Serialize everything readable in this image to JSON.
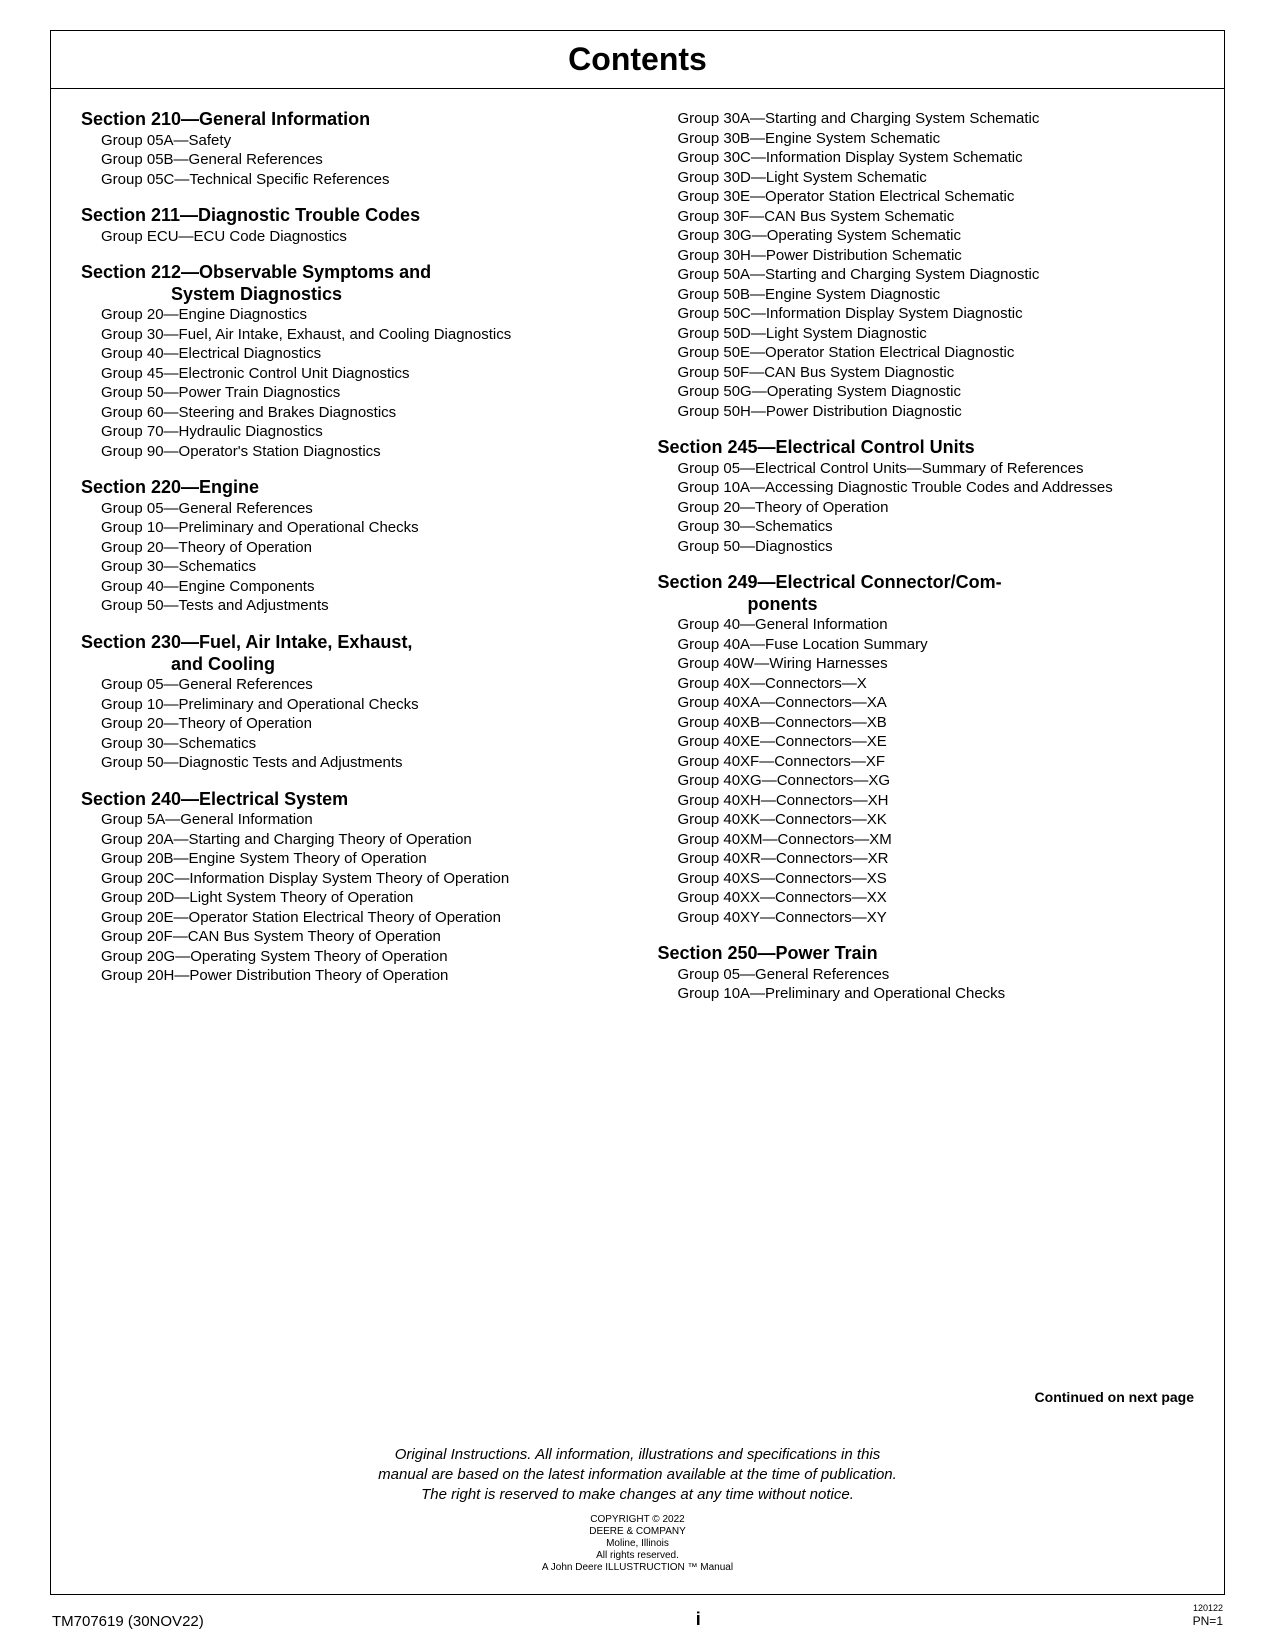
{
  "title": "Contents",
  "continued": "Continued on next page",
  "disclaimer": [
    "Original Instructions. All information, illustrations and specifications in this",
    "manual are based on the latest information available at the time of publication.",
    "The right is reserved to make changes at any time without notice."
  ],
  "copyright": [
    "COPYRIGHT © 2022",
    "DEERE & COMPANY",
    "Moline, Illinois",
    "All rights reserved.",
    "A John Deere ILLUSTRUCTION ™ Manual"
  ],
  "footer": {
    "left": "TM707619 (30NOV22)",
    "center": "i",
    "right_small": "120122",
    "right_pn": "PN=1"
  },
  "left_sections": [
    {
      "title": "Section 210—General Information",
      "groups": [
        "Group 05A—Safety",
        "Group 05B—General References",
        "Group 05C—Technical Specific References"
      ]
    },
    {
      "title": "Section 211—Diagnostic Trouble Codes",
      "groups": [
        "Group ECU—ECU Code Diagnostics"
      ]
    },
    {
      "title": "Section 212—Observable Symptoms and",
      "title_cont": "System Diagnostics",
      "groups": [
        "Group 20—Engine Diagnostics",
        "Group 30—Fuel, Air Intake, Exhaust, and Cooling Diagnostics",
        "Group 40—Electrical Diagnostics",
        "Group 45—Electronic Control Unit Diagnostics",
        "Group 50—Power Train Diagnostics",
        "Group 60—Steering and Brakes Diagnostics",
        "Group 70—Hydraulic Diagnostics",
        "Group 90—Operator's Station Diagnostics"
      ]
    },
    {
      "title": "Section 220—Engine",
      "groups": [
        "Group 05—General References",
        "Group 10—Preliminary and Operational Checks",
        "Group 20—Theory of Operation",
        "Group 30—Schematics",
        "Group 40—Engine Components",
        "Group 50—Tests and Adjustments"
      ]
    },
    {
      "title": "Section 230—Fuel, Air Intake, Exhaust,",
      "title_cont": "and Cooling",
      "groups": [
        "Group 05—General References",
        "Group 10—Preliminary and Operational Checks",
        "Group 20—Theory of Operation",
        "Group 30—Schematics",
        "Group 50—Diagnostic Tests and Adjustments"
      ]
    },
    {
      "title": "Section 240—Electrical System",
      "groups": [
        "Group 5A—General Information",
        "Group 20A—Starting and Charging Theory of Operation",
        "Group 20B—Engine System Theory of Operation",
        "Group 20C—Information Display System Theory of Operation",
        "Group 20D—Light System Theory of Operation",
        "Group 20E—Operator Station Electrical Theory of Operation",
        "Group 20F—CAN Bus System Theory of Operation",
        "Group 20G—Operating System Theory of Operation",
        "Group 20H—Power Distribution Theory of Operation"
      ]
    }
  ],
  "right_continuation_groups": [
    "Group 30A—Starting and Charging System Schematic",
    "Group 30B—Engine System Schematic",
    "Group 30C—Information Display System Schematic",
    "Group 30D—Light System Schematic",
    "Group 30E—Operator Station Electrical Schematic",
    "Group 30F—CAN Bus System Schematic",
    "Group 30G—Operating System Schematic",
    "Group 30H—Power Distribution Schematic",
    "Group 50A—Starting and Charging System Diagnostic",
    "Group 50B—Engine System Diagnostic",
    "Group 50C—Information Display System Diagnostic",
    "Group 50D—Light System Diagnostic",
    "Group 50E—Operator Station Electrical Diagnostic",
    "Group 50F—CAN Bus System Diagnostic",
    "Group 50G—Operating System Diagnostic",
    "Group 50H—Power Distribution Diagnostic"
  ],
  "right_sections": [
    {
      "title": "Section 245—Electrical Control Units",
      "groups": [
        "Group 05—Electrical Control Units—Summary of References",
        "Group 10A—Accessing Diagnostic Trouble Codes and Addresses",
        "Group 20—Theory of Operation",
        "Group 30—Schematics",
        "Group 50—Diagnostics"
      ]
    },
    {
      "title": "Section 249—Electrical Connector/Com-",
      "title_cont": "ponents",
      "groups": [
        "Group 40—General Information",
        "Group 40A—Fuse Location Summary",
        "Group 40W—Wiring Harnesses",
        "Group 40X—Connectors—X",
        "Group 40XA—Connectors—XA",
        "Group 40XB—Connectors—XB",
        "Group 40XE—Connectors—XE",
        "Group 40XF—Connectors—XF",
        "Group 40XG—Connectors—XG",
        "Group 40XH—Connectors—XH",
        "Group 40XK—Connectors—XK",
        "Group 40XM—Connectors—XM",
        "Group 40XR—Connectors—XR",
        "Group 40XS—Connectors—XS",
        "Group 40XX—Connectors—XX",
        "Group 40XY—Connectors—XY"
      ]
    },
    {
      "title": "Section 250—Power Train",
      "groups": [
        "Group 05—General References",
        "Group 10A—Preliminary and Operational Checks"
      ]
    }
  ]
}
